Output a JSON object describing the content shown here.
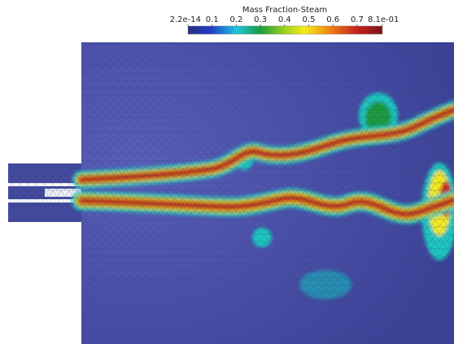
{
  "colorbar": {
    "title": "Mass Fraction-Steam",
    "ticks": [
      "2.2e-14",
      "0.1",
      "0.2",
      "0.3",
      "0.4",
      "0.5",
      "0.6",
      "0.7",
      "8.1e-01"
    ]
  }
}
